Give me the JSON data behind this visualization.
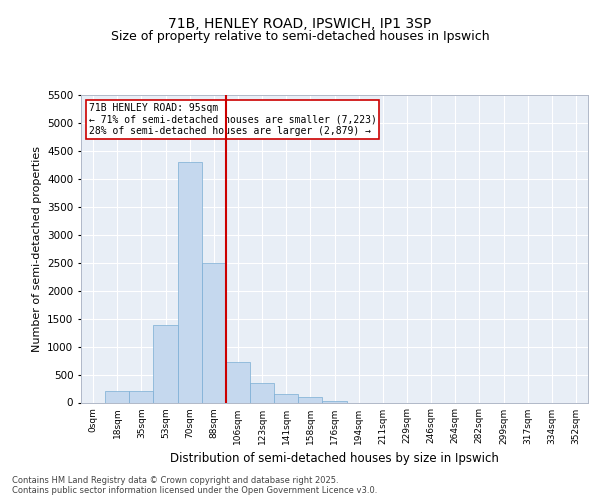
{
  "title1": "71B, HENLEY ROAD, IPSWICH, IP1 3SP",
  "title2": "Size of property relative to semi-detached houses in Ipswich",
  "xlabel": "Distribution of semi-detached houses by size in Ipswich",
  "ylabel": "Number of semi-detached properties",
  "property_label": "71B HENLEY ROAD: 95sqm",
  "pct_smaller": 71,
  "count_smaller": 7223,
  "pct_larger": 28,
  "count_larger": 2879,
  "bin_labels": [
    "0sqm",
    "18sqm",
    "35sqm",
    "53sqm",
    "70sqm",
    "88sqm",
    "106sqm",
    "123sqm",
    "141sqm",
    "158sqm",
    "176sqm",
    "194sqm",
    "211sqm",
    "229sqm",
    "246sqm",
    "264sqm",
    "282sqm",
    "299sqm",
    "317sqm",
    "334sqm",
    "352sqm"
  ],
  "bar_values": [
    0,
    200,
    210,
    1380,
    4310,
    2500,
    720,
    350,
    155,
    100,
    30,
    0,
    0,
    0,
    0,
    0,
    0,
    0,
    0,
    0,
    0
  ],
  "bar_color": "#c5d8ee",
  "bar_edge_color": "#7aadd4",
  "vline_color": "#cc0000",
  "vline_x": 5.5,
  "box_color": "#cc0000",
  "ylim": [
    0,
    5500
  ],
  "yticks": [
    0,
    500,
    1000,
    1500,
    2000,
    2500,
    3000,
    3500,
    4000,
    4500,
    5000,
    5500
  ],
  "bg_color": "#e8eef6",
  "footer": "Contains HM Land Registry data © Crown copyright and database right 2025.\nContains public sector information licensed under the Open Government Licence v3.0.",
  "title_fontsize": 10,
  "subtitle_fontsize": 9
}
